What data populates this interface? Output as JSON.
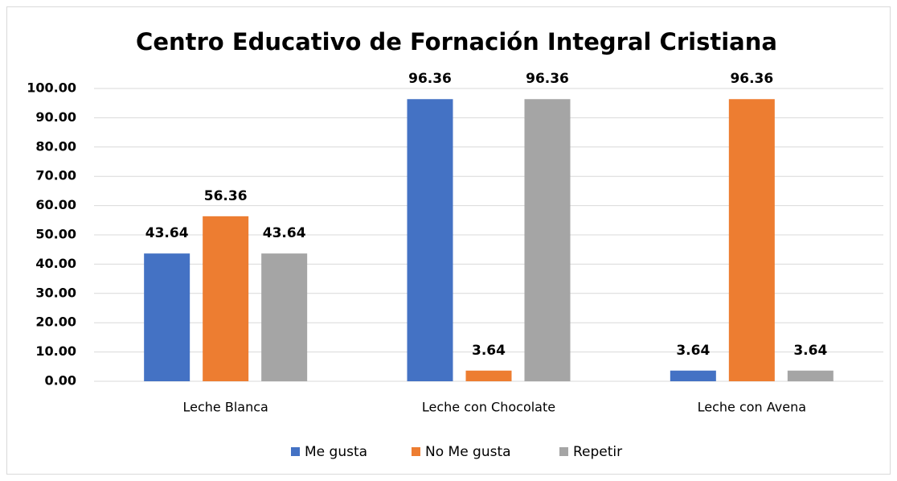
{
  "chart_data": {
    "type": "bar",
    "title": "Centro Educativo de Fornación Integral Cristiana",
    "categories": [
      "Leche Blanca",
      "Leche con Chocolate",
      "Leche con Avena"
    ],
    "series": [
      {
        "name": "Me gusta",
        "color": "#4472c4",
        "values": [
          43.64,
          96.36,
          3.64
        ]
      },
      {
        "name": "No Me gusta",
        "color": "#ed7d31",
        "values": [
          56.36,
          3.64,
          96.36
        ]
      },
      {
        "name": "Repetir",
        "color": "#a5a5a5",
        "values": [
          43.64,
          96.36,
          3.64
        ]
      }
    ],
    "ylim": [
      0,
      100
    ],
    "yticks": [
      {
        "value": 0,
        "label": "0.00"
      },
      {
        "value": 10,
        "label": "10.00"
      },
      {
        "value": 20,
        "label": "20.00"
      },
      {
        "value": 30,
        "label": "30.00"
      },
      {
        "value": 40,
        "label": "40.00"
      },
      {
        "value": 50,
        "label": "50.00"
      },
      {
        "value": 60,
        "label": "60.00"
      },
      {
        "value": 70,
        "label": "70.00"
      },
      {
        "value": 80,
        "label": "80.00"
      },
      {
        "value": 90,
        "label": "90.00"
      },
      {
        "value": 100,
        "label": "100.00"
      }
    ],
    "grid": true,
    "legend": "bottom"
  }
}
